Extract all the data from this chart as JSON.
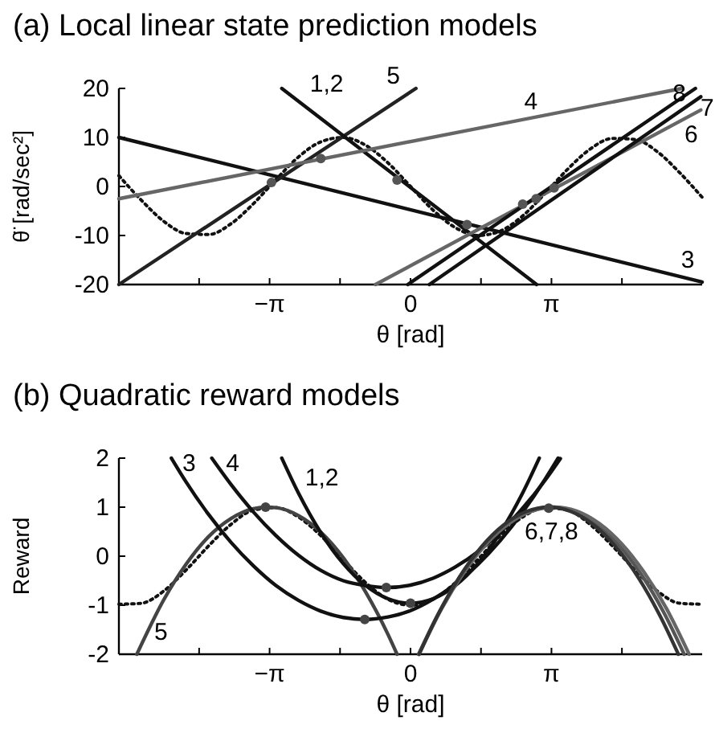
{
  "chart_data": [
    {
      "type": "line",
      "title": "(a) Local linear state prediction models",
      "xlabel": "θ [rad]",
      "ylabel": "θ̈ [rad/sec²]",
      "xlim": [
        -6.5,
        6.5
      ],
      "ylim": [
        -20,
        20
      ],
      "xticks": [
        {
          "value": -4.712,
          "label": null
        },
        {
          "value": -3.1416,
          "label": "−π"
        },
        {
          "value": -1.5708,
          "label": null
        },
        {
          "value": 0,
          "label": "0"
        },
        {
          "value": 1.5708,
          "label": null
        },
        {
          "value": 3.1416,
          "label": "π"
        },
        {
          "value": 4.712,
          "label": null
        }
      ],
      "yticks": [
        -20,
        -10,
        0,
        10,
        20
      ],
      "series": [
        {
          "type": "line",
          "color": "#111111",
          "line_style": "dotted",
          "x": [
            -6.5,
            -6,
            -5.5,
            -5,
            -4.5,
            -4,
            -3.5,
            -3,
            -2.5,
            -2,
            -1.5,
            -1,
            -0.5,
            0,
            0.5,
            1,
            1.5,
            2,
            2.5,
            3,
            3.5,
            4,
            4.5,
            5,
            5.5,
            6,
            6.5
          ],
          "values": [
            2.2,
            -2.8,
            -7.1,
            -9.6,
            -9.8,
            -7.6,
            -3.5,
            1.4,
            6.0,
            9.1,
            10.0,
            8.4,
            4.8,
            0,
            -4.8,
            -8.4,
            -10,
            -9.1,
            -6.0,
            -1.4,
            3.5,
            7.6,
            9.8,
            9.6,
            7.1,
            2.8,
            -2.2
          ]
        },
        {
          "type": "line",
          "name": "3",
          "color": "#111111",
          "x": [
            -6.5,
            6.5
          ],
          "values": [
            10,
            -19.5
          ]
        },
        {
          "type": "line",
          "name": "5",
          "color": "#222222",
          "x": [
            -6.5,
            0.12
          ],
          "values": [
            -20,
            20
          ]
        },
        {
          "type": "line",
          "name": "1,2",
          "color": "#111111",
          "x": [
            -2.87,
            2.81
          ],
          "values": [
            20,
            -20
          ]
        },
        {
          "type": "line",
          "name": "4",
          "color": "#666666",
          "x": [
            -6.5,
            6.05
          ],
          "values": [
            -2.5,
            20
          ]
        },
        {
          "type": "line",
          "name": "6",
          "color": "#666666",
          "x": [
            -0.78,
            6.47
          ],
          "values": [
            -20,
            15.6
          ]
        },
        {
          "type": "line",
          "name": "7",
          "color": "#111111",
          "x": [
            0.42,
            6.47
          ],
          "values": [
            -20,
            18.3
          ]
        },
        {
          "type": "line",
          "name": "8",
          "color": "#111111",
          "x": [
            -0.06,
            6.35
          ],
          "values": [
            -20,
            20
          ]
        },
        {
          "type": "scatter",
          "color": "#555555",
          "marker": "circle",
          "x": [
            -3.1,
            -2.0,
            -0.3,
            1.26,
            2.5,
            2.8,
            3.2
          ],
          "values": [
            0.8,
            5.7,
            1.3,
            -7.8,
            -3.6,
            -2.5,
            -0.3
          ]
        }
      ],
      "legend": false
    },
    {
      "type": "line",
      "title": "(b) Quadratic reward models",
      "xlabel": "θ [rad]",
      "ylabel": "Reward",
      "xlim": [
        -6.5,
        6.5
      ],
      "ylim": [
        -2,
        2
      ],
      "xticks": [
        {
          "value": -4.712,
          "label": null
        },
        {
          "value": -3.1416,
          "label": "−π"
        },
        {
          "value": -1.5708,
          "label": null
        },
        {
          "value": 0,
          "label": "0"
        },
        {
          "value": 1.5708,
          "label": null
        },
        {
          "value": 3.1416,
          "label": "π"
        },
        {
          "value": 4.712,
          "label": null
        }
      ],
      "yticks": [
        -2,
        -1,
        0,
        1,
        2
      ],
      "series": [
        {
          "type": "line",
          "color": "#111111",
          "line_style": "dotted",
          "x": [
            -6.5,
            -6,
            -5.5,
            -5,
            -4.5,
            -4,
            -3.5,
            -3,
            -2.5,
            -2,
            -1.5,
            -1,
            -0.5,
            0,
            0.5,
            1,
            1.5,
            2,
            2.5,
            3,
            3.5,
            4,
            4.5,
            5,
            5.5,
            6,
            6.5
          ],
          "values": [
            -0.98,
            -0.96,
            -0.71,
            -0.28,
            0.21,
            0.65,
            0.94,
            0.99,
            0.8,
            0.42,
            -0.07,
            -0.54,
            -0.88,
            -1,
            -0.88,
            -0.54,
            -0.07,
            0.42,
            0.8,
            0.99,
            0.94,
            0.65,
            0.21,
            -0.28,
            -0.71,
            -0.96,
            -0.98
          ]
        },
        {
          "type": "line",
          "name": "5",
          "color": "#444444",
          "x": [
            -6.1,
            -5.5,
            -5,
            -4.5,
            -4,
            -3.5,
            -3.2,
            -3,
            -2.5,
            -2,
            -1.5,
            -1,
            -0.5,
            -0.3
          ],
          "values": [
            -2,
            -0.89,
            -0.16,
            0.4,
            0.77,
            0.97,
            1,
            0.99,
            0.83,
            0.49,
            -0.03,
            -0.73,
            -1.6,
            -2
          ]
        },
        {
          "type": "line",
          "name": "3",
          "color": "#111111",
          "x": [
            -5.33,
            -5,
            -4.5,
            -4,
            -3.5,
            -3,
            -2.5,
            -2,
            -1.5,
            -1.02,
            -0.5,
            0,
            0.5,
            1,
            1.5,
            2,
            2.5,
            3,
            3.29
          ],
          "values": [
            2,
            1.51,
            0.85,
            0.28,
            -0.2,
            -0.6,
            -0.9,
            -1.12,
            -1.25,
            -1.29,
            -1.24,
            -1.11,
            -0.88,
            -0.57,
            -0.17,
            0.32,
            0.9,
            1.57,
            2
          ]
        },
        {
          "type": "line",
          "name": "4",
          "color": "#111111",
          "x": [
            -4.43,
            -4,
            -3.5,
            -3,
            -2.5,
            -2,
            -1.5,
            -1,
            -0.54,
            0,
            0.5,
            1,
            1.5,
            2,
            2.5,
            3,
            3.34
          ],
          "values": [
            2,
            1.46,
            0.9,
            0.42,
            0.02,
            -0.29,
            -0.5,
            -0.6,
            -0.64,
            -0.59,
            -0.45,
            -0.22,
            0.09,
            0.49,
            0.98,
            1.55,
            1.99
          ]
        },
        {
          "type": "line",
          "name": "1,2",
          "color": "#111111",
          "x": [
            -2.87,
            -2.5,
            -2,
            -1.5,
            -1,
            -0.5,
            0,
            0.5,
            1,
            1.5,
            2,
            2.5,
            2.87
          ],
          "values": [
            2,
            1.29,
            0.48,
            -0.15,
            -0.6,
            -0.87,
            -0.96,
            -0.87,
            -0.6,
            -0.15,
            0.48,
            1.29,
            2
          ]
        },
        {
          "type": "line",
          "name": "6,7,8",
          "color": "#555555",
          "x": [
            0.18,
            0.64,
            1.14,
            1.64,
            2.14,
            2.64,
            3.14,
            3.64,
            4.14,
            4.64,
            5.14,
            5.64,
            6.1
          ],
          "values": [
            -2,
            -1.14,
            -0.37,
            0.23,
            0.66,
            0.91,
            1,
            0.91,
            0.66,
            0.23,
            -0.37,
            -1.14,
            -2
          ]
        },
        {
          "type": "line",
          "color": "#666666",
          "x": [
            0.19,
            0.7,
            1.2,
            1.7,
            2.2,
            2.7,
            3.2,
            3.7,
            4.2,
            4.7,
            5.2,
            5.7,
            6.21
          ],
          "values": [
            -2,
            -1.06,
            -0.32,
            0.26,
            0.67,
            0.92,
            1,
            0.92,
            0.67,
            0.26,
            -0.32,
            -1.06,
            -2
          ]
        },
        {
          "type": "line",
          "color": "#333333",
          "x": [
            0.19,
            0.58,
            1.08,
            1.58,
            2.08,
            2.58,
            3.08,
            3.58,
            4.08,
            4.58,
            5.08,
            5.58,
            5.97
          ],
          "values": [
            -2,
            -1.25,
            -0.44,
            0.19,
            0.64,
            0.91,
            1,
            0.91,
            0.64,
            0.19,
            -0.44,
            -1.25,
            -2
          ]
        },
        {
          "type": "scatter",
          "color": "#444444",
          "marker": "circle",
          "x": [
            -3.23,
            -1.02,
            -0.54,
            0,
            3.08
          ],
          "values": [
            1.0,
            -1.29,
            -0.64,
            -0.96,
            0.98
          ]
        }
      ],
      "legend": false
    }
  ]
}
